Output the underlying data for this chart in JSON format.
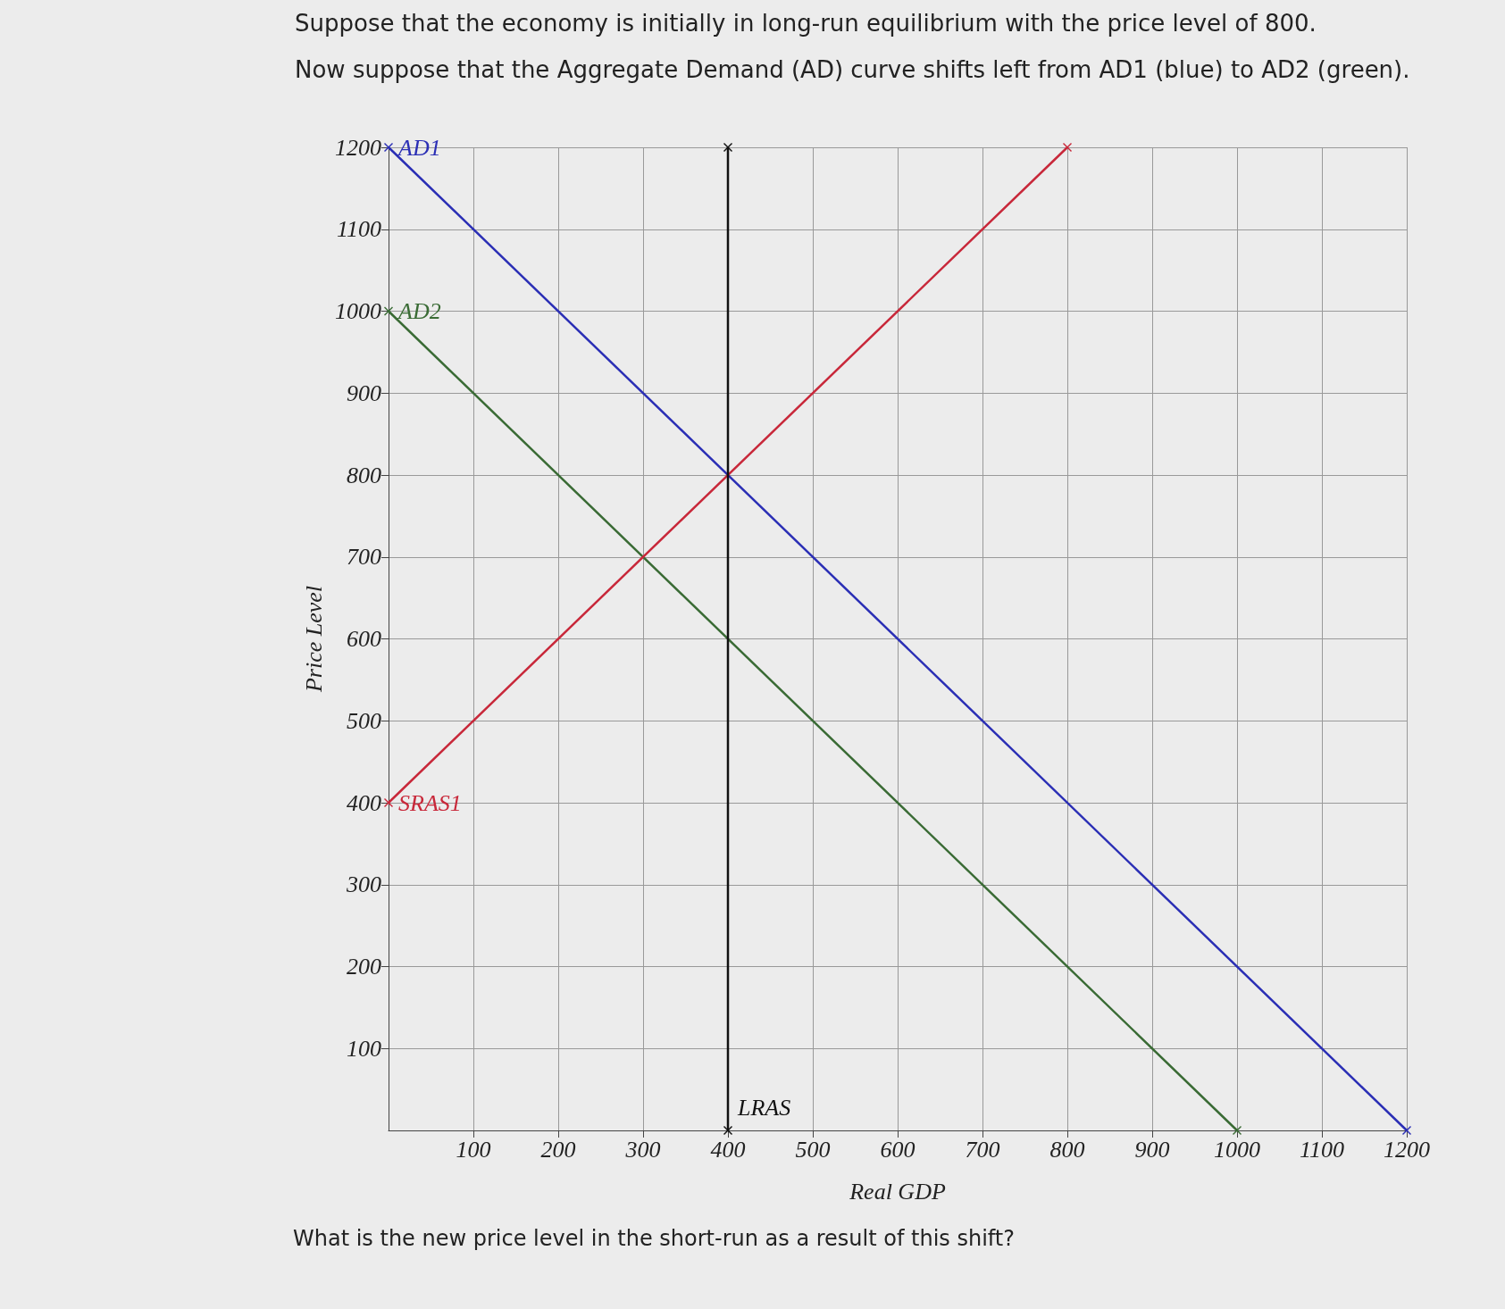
{
  "chart_data": {
    "type": "line",
    "title": "Suppose that the economy is initially in long-run equilibrium with the price level of 800.",
    "subtitle": "Now suppose that the Aggregate Demand (AD) curve shifts left from AD1 (blue) to AD2 (green).",
    "xlabel": "Real GDP",
    "ylabel": "Price Level",
    "annotations": [
      "What is the new price level in the short-run as a result of this shift?"
    ],
    "series": [
      {
        "name": "AD1",
        "color": "#2b2fb5",
        "x": [
          0,
          1200
        ],
        "values": [
          1200,
          0
        ]
      },
      {
        "name": "AD2",
        "color": "#3a6b35",
        "x": [
          0,
          1000
        ],
        "values": [
          1000,
          0
        ]
      },
      {
        "name": "SRAS1",
        "color": "#c8283a",
        "x": [
          0,
          800
        ],
        "values": [
          400,
          1200
        ]
      },
      {
        "name": "LRAS",
        "color": "#111111",
        "x": [
          400,
          400
        ],
        "values": [
          0,
          1200
        ]
      }
    ],
    "xlim": [
      0,
      1200
    ],
    "ylim": [
      0,
      1200
    ],
    "xticks": [
      100,
      200,
      300,
      400,
      500,
      600,
      700,
      800,
      900,
      1000,
      1100,
      1200
    ],
    "yticks": [
      100,
      200,
      300,
      400,
      500,
      600,
      700,
      800,
      900,
      1000,
      1100,
      1200
    ],
    "grid": true,
    "legend": false,
    "marker": "cross",
    "line_style": "solid"
  }
}
